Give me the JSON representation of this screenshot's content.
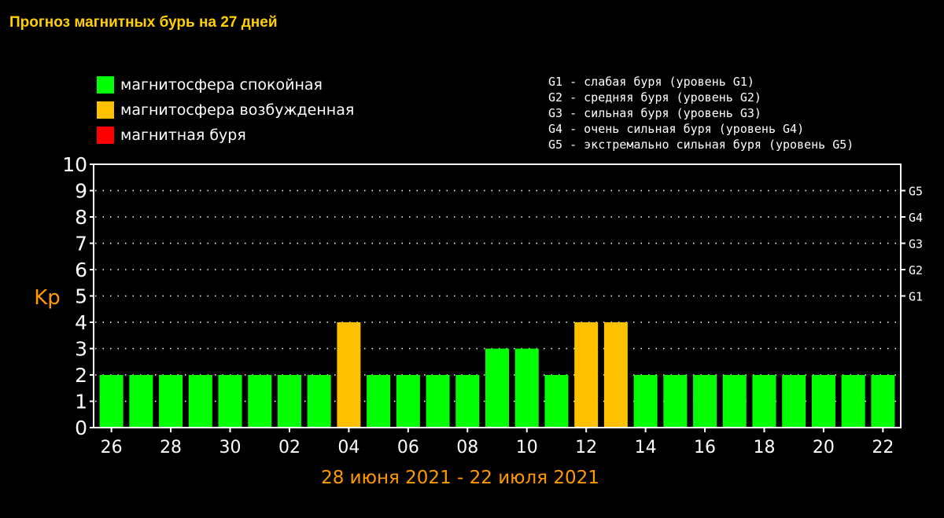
{
  "title": "Прогноз магнитных бурь на 27 дней",
  "legend": [
    {
      "label": "магнитосфера спокойная",
      "color": "#00ff00"
    },
    {
      "label": "магнитосфера возбужденная",
      "color": "#ffc000"
    },
    {
      "label": "магнитная буря",
      "color": "#ff0000"
    }
  ],
  "storm_levels": [
    "G1 - слабая буря (уровень G1)",
    "G2 - средняя буря (уровень G2)",
    "G3 - сильная буря (уровень G3)",
    "G4 - очень сильная буря (уровень G4)",
    "G5 - экстремально сильная буря (уровень G5)"
  ],
  "chart_data": {
    "type": "bar",
    "ylabel": "Kp",
    "xlabel": "28 июня 2021 - 22 июля 2021",
    "ylim": [
      0,
      10
    ],
    "yticks": [
      0,
      1,
      2,
      3,
      4,
      5,
      6,
      7,
      8,
      9,
      10
    ],
    "xtick_labels": [
      "26",
      "28",
      "30",
      "02",
      "04",
      "06",
      "08",
      "10",
      "12",
      "14",
      "16",
      "18",
      "20",
      "22"
    ],
    "right_axis": [
      {
        "label": "G1",
        "value": 5
      },
      {
        "label": "G2",
        "value": 6
      },
      {
        "label": "G3",
        "value": 7
      },
      {
        "label": "G4",
        "value": 8
      },
      {
        "label": "G5",
        "value": 9
      }
    ],
    "grid": true,
    "values": [
      2,
      2,
      2,
      2,
      2,
      2,
      2,
      2,
      4,
      2,
      2,
      2,
      2,
      3,
      3,
      2,
      4,
      4,
      2,
      2,
      2,
      2,
      2,
      2,
      2,
      2,
      2
    ],
    "bar_status": [
      "quiet",
      "quiet",
      "quiet",
      "quiet",
      "quiet",
      "quiet",
      "quiet",
      "quiet",
      "active",
      "quiet",
      "quiet",
      "quiet",
      "quiet",
      "quiet",
      "quiet",
      "quiet",
      "active",
      "active",
      "quiet",
      "quiet",
      "quiet",
      "quiet",
      "quiet",
      "quiet",
      "quiet",
      "quiet",
      "quiet"
    ],
    "colors": {
      "quiet": "#00ff00",
      "active": "#ffc000",
      "storm": "#ff0000",
      "axis": "#ffffff",
      "axis_label": "#ff9900",
      "grid": "#ffffff"
    }
  }
}
